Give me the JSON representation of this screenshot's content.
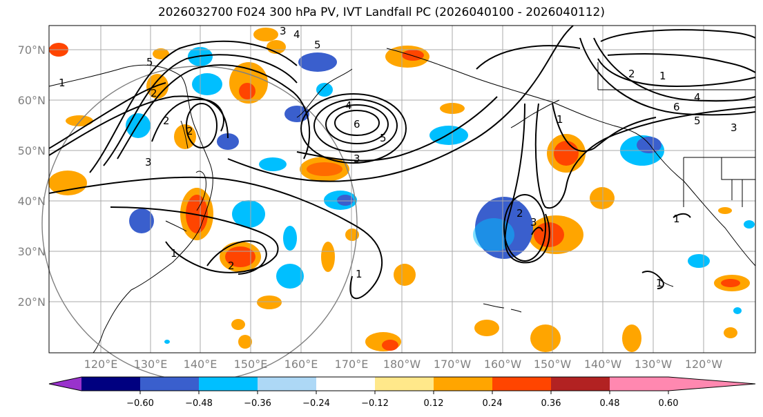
{
  "title": "2026032700 F024 300 hPa PV, IVT Landfall PC (2026040100 - 2026040112)",
  "map": {
    "lat_labels": [
      "70°N",
      "60°N",
      "50°N",
      "40°N",
      "30°N",
      "20°N"
    ],
    "lon_labels": [
      "120°E",
      "130°E",
      "140°E",
      "150°E",
      "160°E",
      "170°E",
      "180°W",
      "170°W",
      "160°W",
      "150°W",
      "140°W",
      "130°W",
      "120°W"
    ],
    "pv_contour_labels": [
      "1",
      "2",
      "3",
      "4",
      "5",
      "6",
      "1",
      "2",
      "3",
      "4",
      "5",
      "6",
      "5",
      "3",
      "2",
      "1",
      "1",
      "2",
      "3",
      "1",
      "1",
      "3",
      "2",
      "1",
      "2",
      "4",
      "5"
    ]
  },
  "colorbar": {
    "tick_labels": [
      "−0.60",
      "−0.48",
      "−0.36",
      "−0.24",
      "−0.12",
      "0.12",
      "0.24",
      "0.36",
      "0.48",
      "0.60"
    ],
    "colors": [
      "#9932cc",
      "#000080",
      "#3a5fcd",
      "#00bfff",
      "#add8f6",
      "#ffffff",
      "#ffe88a",
      "#ffa500",
      "#ff4500",
      "#b22222",
      "#ff88b0"
    ]
  }
}
